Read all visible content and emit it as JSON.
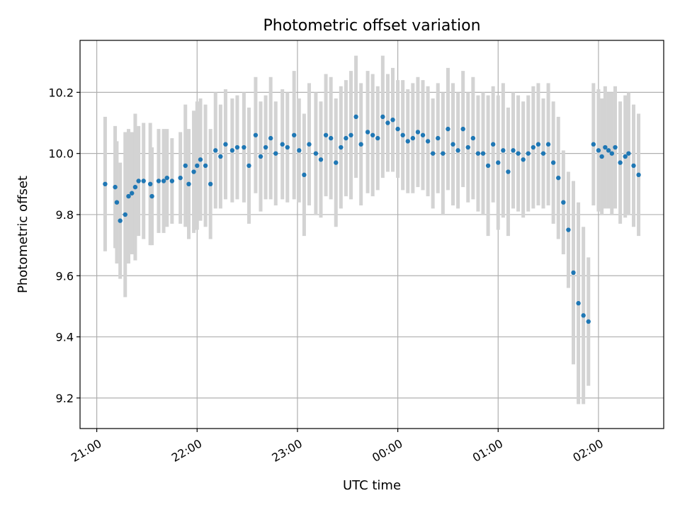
{
  "chart_data": {
    "type": "scatter",
    "title": "Photometric offset variation",
    "xlabel": "UTC time",
    "ylabel": "Photometric offset",
    "x_tick_labels": [
      "21:00",
      "22:00",
      "23:00",
      "00:00",
      "01:00",
      "02:00"
    ],
    "y_tick_labels": [
      "9.2",
      "9.4",
      "9.6",
      "9.8",
      "10.0",
      "10.2"
    ],
    "xlim": [
      "20:50",
      "02:39"
    ],
    "ylim": [
      9.1,
      10.37
    ],
    "grid": true,
    "colors": {
      "points": "#1f77b4",
      "errorbars": "#d3d3d3",
      "grid": "#b0b0b0"
    },
    "series": [
      {
        "x": [
          "21:05",
          "21:11",
          "21:12",
          "21:14",
          "21:17",
          "21:19",
          "21:21",
          "21:23",
          "21:25",
          "21:28",
          "21:32",
          "21:33",
          "21:37",
          "21:40",
          "21:42",
          "21:45",
          "21:50",
          "21:53",
          "21:55",
          "21:58",
          "22:00",
          "22:02",
          "22:05",
          "22:08",
          "22:11",
          "22:14",
          "22:17",
          "22:21",
          "22:24",
          "22:28",
          "22:31",
          "22:35",
          "22:38",
          "22:41",
          "22:44",
          "22:47",
          "22:51",
          "22:54",
          "22:58",
          "23:01",
          "23:04",
          "23:07",
          "23:11",
          "23:14",
          "23:17",
          "23:20",
          "23:23",
          "23:26",
          "23:29",
          "23:32",
          "23:35",
          "23:38",
          "23:42",
          "23:45",
          "23:48",
          "23:51",
          "23:54",
          "23:57",
          "00:00",
          "00:03",
          "00:06",
          "00:09",
          "00:12",
          "00:15",
          "00:18",
          "00:21",
          "00:24",
          "00:27",
          "00:30",
          "00:33",
          "00:36",
          "00:39",
          "00:42",
          "00:45",
          "00:48",
          "00:51",
          "00:54",
          "00:57",
          "01:00",
          "01:03",
          "01:06",
          "01:09",
          "01:12",
          "01:15",
          "01:18",
          "01:21",
          "01:24",
          "01:27",
          "01:30",
          "01:33",
          "01:36",
          "01:39",
          "01:42",
          "01:45",
          "01:48",
          "01:51",
          "01:54",
          "01:57",
          "02:00",
          "02:02",
          "02:04",
          "02:06",
          "02:08",
          "02:10",
          "02:13",
          "02:16",
          "02:18",
          "02:21",
          "02:24"
        ],
        "y": [
          9.9,
          9.89,
          9.84,
          9.78,
          9.8,
          9.86,
          9.87,
          9.89,
          9.91,
          9.91,
          9.9,
          9.86,
          9.91,
          9.91,
          9.92,
          9.91,
          9.92,
          9.96,
          9.9,
          9.94,
          9.96,
          9.98,
          9.96,
          9.9,
          10.01,
          9.99,
          10.03,
          10.01,
          10.02,
          10.02,
          9.96,
          10.06,
          9.99,
          10.02,
          10.05,
          10.0,
          10.03,
          10.02,
          10.06,
          10.01,
          9.93,
          10.03,
          10.0,
          9.98,
          10.06,
          10.05,
          9.97,
          10.02,
          10.05,
          10.06,
          10.12,
          10.03,
          10.07,
          10.06,
          10.05,
          10.12,
          10.1,
          10.11,
          10.08,
          10.06,
          10.04,
          10.05,
          10.07,
          10.06,
          10.04,
          10.0,
          10.05,
          10.0,
          10.08,
          10.03,
          10.01,
          10.08,
          10.02,
          10.05,
          10.0,
          10.0,
          9.96,
          10.03,
          9.97,
          10.01,
          9.94,
          10.01,
          10.0,
          9.98,
          10.0,
          10.02,
          10.03,
          10.0,
          10.03,
          9.97,
          9.92,
          9.84,
          9.75,
          9.61,
          9.51,
          9.47,
          9.45,
          10.03,
          10.01,
          9.99,
          10.02,
          10.01,
          10.0,
          10.02,
          9.97,
          9.99,
          10.0,
          9.96,
          9.93
        ],
        "error": [
          0.22,
          0.2,
          0.2,
          0.19,
          0.27,
          0.22,
          0.2,
          0.24,
          0.18,
          0.19,
          0.2,
          0.16,
          0.17,
          0.17,
          0.16,
          0.14,
          0.15,
          0.2,
          0.18,
          0.2,
          0.21,
          0.2,
          0.2,
          0.18,
          0.19,
          0.17,
          0.18,
          0.17,
          0.17,
          0.18,
          0.19,
          0.19,
          0.18,
          0.17,
          0.2,
          0.17,
          0.18,
          0.18,
          0.21,
          0.17,
          0.2,
          0.2,
          0.2,
          0.19,
          0.2,
          0.2,
          0.21,
          0.2,
          0.19,
          0.21,
          0.2,
          0.2,
          0.2,
          0.2,
          0.17,
          0.2,
          0.16,
          0.17,
          0.16,
          0.18,
          0.17,
          0.18,
          0.18,
          0.18,
          0.18,
          0.18,
          0.18,
          0.2,
          0.2,
          0.2,
          0.19,
          0.19,
          0.18,
          0.2,
          0.19,
          0.2,
          0.23,
          0.19,
          0.22,
          0.22,
          0.21,
          0.19,
          0.19,
          0.19,
          0.19,
          0.2,
          0.2,
          0.18,
          0.2,
          0.2,
          0.2,
          0.17,
          0.19,
          0.3,
          0.33,
          0.29,
          0.21,
          0.2,
          0.2,
          0.19,
          0.2,
          0.19,
          0.2,
          0.2,
          0.2,
          0.2,
          0.2,
          0.2,
          0.2
        ]
      }
    ]
  }
}
